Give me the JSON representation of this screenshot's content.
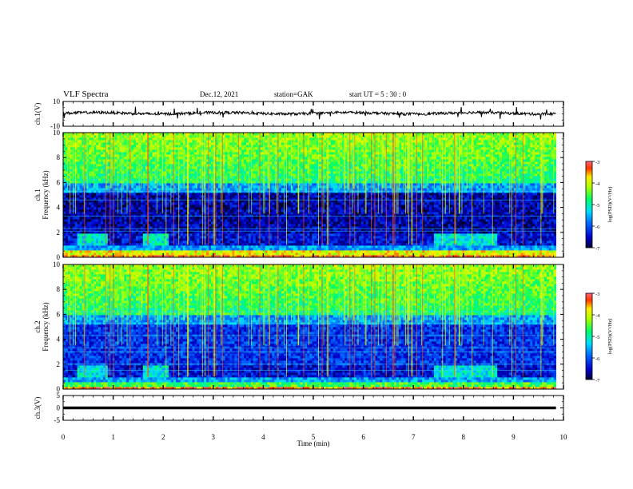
{
  "header": {
    "title": "VLF Spectra",
    "date": "Dec.12, 2021",
    "station": "station=GAK",
    "start": "start  UT =   5 : 30 : 0"
  },
  "chart_data": {
    "type": "heatmap",
    "title": "VLF Spectra",
    "xlabel": "Time  (min)",
    "xlim": [
      0,
      10
    ],
    "x_ticks": [
      0,
      1,
      2,
      3,
      4,
      5,
      6,
      7,
      8,
      9,
      10
    ],
    "panels": [
      {
        "id": "ch1_waveform",
        "type": "line",
        "ylabel": "ch.1(V)",
        "ylim": [
          -10,
          10
        ],
        "y_ticks": [
          10,
          -10
        ],
        "approx_level": 0.5,
        "data_end_min": 9.85
      },
      {
        "id": "ch1_spectrogram",
        "type": "heatmap",
        "ylabel": "ch.1\nFrequency  (kHz)",
        "ylim": [
          0,
          10
        ],
        "y_ticks": [
          0,
          2,
          4,
          6,
          8,
          10
        ],
        "colorbar": {
          "label": "log(PSD)(V²/Hz)",
          "range": [
            -7,
            -3
          ],
          "ticks": [
            -3,
            -4,
            -5,
            -6,
            -7
          ]
        }
      },
      {
        "id": "ch2_spectrogram",
        "type": "heatmap",
        "ylabel": "ch.2\nFrequency  (kHz)",
        "ylim": [
          0,
          10
        ],
        "y_ticks": [
          0,
          2,
          4,
          6,
          8,
          10
        ],
        "colorbar": {
          "label": "log(PSD)(V²/Hz)",
          "range": [
            -7,
            -3
          ],
          "ticks": [
            -3,
            -4,
            -5,
            -6,
            -7
          ]
        }
      },
      {
        "id": "ch3_waveform",
        "type": "line",
        "ylabel": "ch.3(V)",
        "ylim": [
          -5,
          5
        ],
        "y_ticks": [
          5,
          0,
          -5
        ],
        "approx_level": 0,
        "data_end_min": 9.85
      }
    ]
  }
}
